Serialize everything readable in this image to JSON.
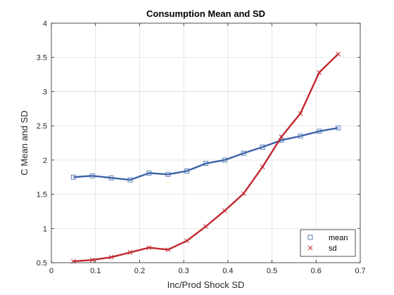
{
  "chart_data": {
    "type": "line",
    "title": "Consumption Mean and SD",
    "xlabel": "Inc/Prod Shock SD",
    "ylabel": "C Mean and SD",
    "xlim": [
      0,
      0.7
    ],
    "ylim": [
      0.5,
      4
    ],
    "xticks": [
      0,
      0.1,
      0.2,
      0.3,
      0.4,
      0.5,
      0.6,
      0.7
    ],
    "xtick_labels": [
      "0",
      "0.1",
      "0.2",
      "0.3",
      "0.4",
      "0.5",
      "0.6",
      "0.7"
    ],
    "yticks": [
      0.5,
      1,
      1.5,
      2,
      2.5,
      3,
      3.5,
      4
    ],
    "ytick_labels": [
      "0.5",
      "1",
      "1.5",
      "2",
      "2.5",
      "3",
      "3.5",
      "4"
    ],
    "grid": true,
    "legend_position": "bottom-right",
    "x": [
      0.05,
      0.0929,
      0.1357,
      0.1786,
      0.2214,
      0.2643,
      0.3071,
      0.35,
      0.3929,
      0.4357,
      0.4786,
      0.5214,
      0.5643,
      0.6071,
      0.65
    ],
    "series": [
      {
        "name": "mean",
        "color": "#3b62a8",
        "marker": "square",
        "values": [
          1.75,
          1.77,
          1.74,
          1.71,
          1.81,
          1.79,
          1.84,
          1.95,
          2.0,
          2.1,
          2.19,
          2.29,
          2.35,
          2.42,
          2.47
        ]
      },
      {
        "name": "sd",
        "color": "#c1272d",
        "marker": "x",
        "values": [
          0.52,
          0.54,
          0.58,
          0.65,
          0.72,
          0.69,
          0.82,
          1.03,
          1.26,
          1.51,
          1.9,
          2.34,
          2.68,
          3.28,
          3.55
        ]
      }
    ]
  }
}
